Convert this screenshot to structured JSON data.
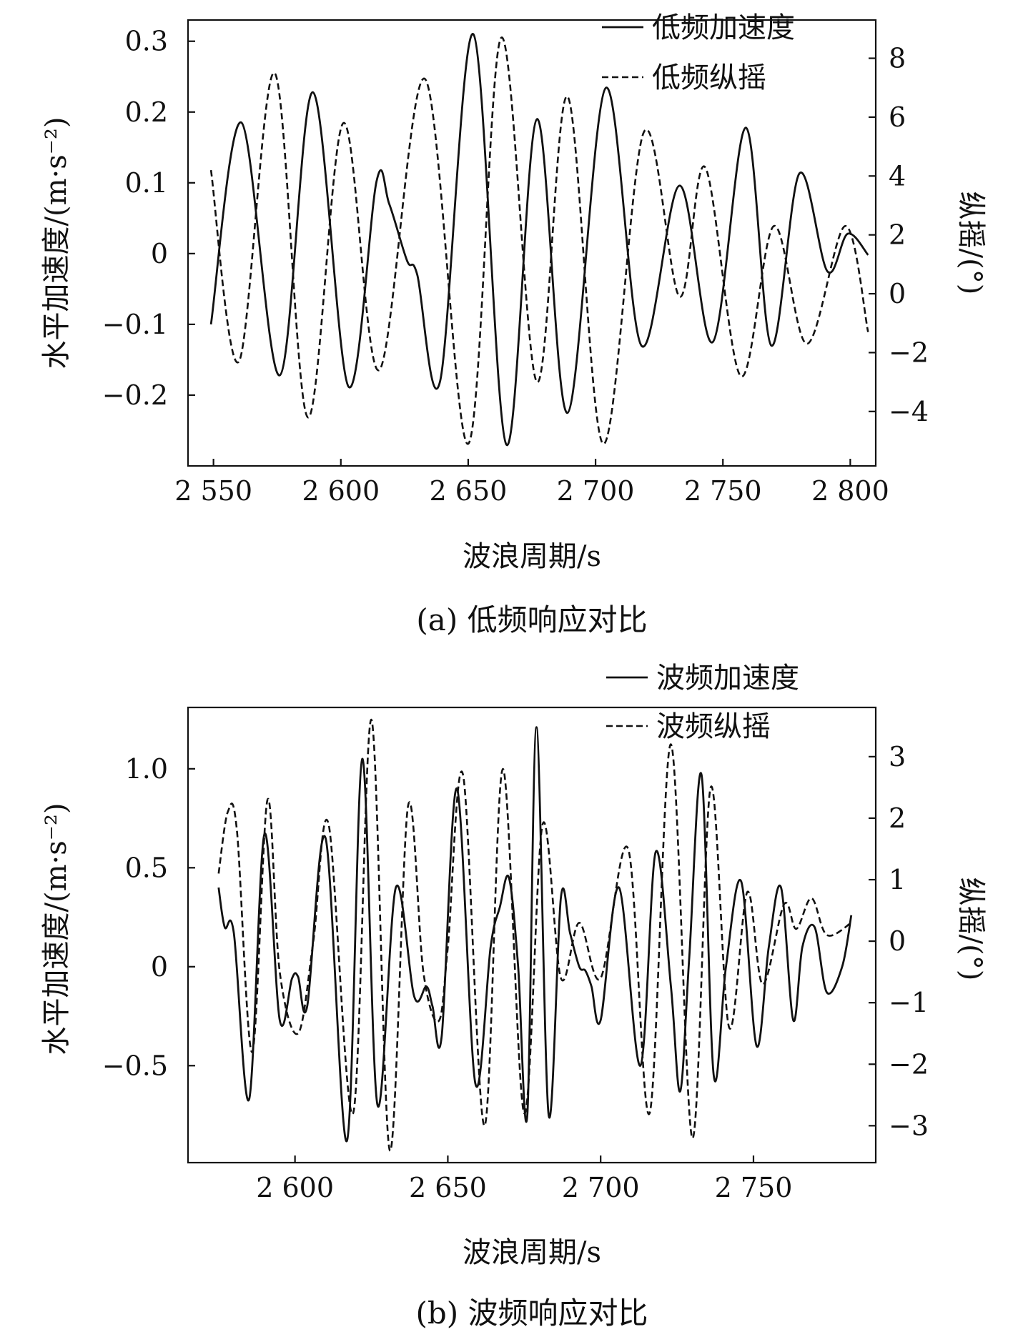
{
  "chart_data": [
    {
      "type": "line",
      "caption": "(a) 低频响应对比",
      "xlabel": "波浪周期/s",
      "ylabel": "水平加速度/(m·s⁻²)",
      "y2label": "纵摇/(°)",
      "xlim": [
        2540,
        2810
      ],
      "ylim": [
        -0.3,
        0.33
      ],
      "y2lim": [
        -5.85,
        9.3
      ],
      "xticks": [
        2550,
        2600,
        2650,
        2700,
        2750,
        2800
      ],
      "xtick_labels": [
        "2 550",
        "2 600",
        "2 650",
        "2 700",
        "2 750",
        "2 800"
      ],
      "yticks": [
        -0.2,
        -0.1,
        0,
        0.1,
        0.2,
        0.3
      ],
      "ytick_labels": [
        "−0.2",
        "−0.1",
        "0",
        "0.1",
        "0.2",
        "0.3"
      ],
      "y2ticks": [
        -4,
        -2,
        0,
        2,
        4,
        6,
        8
      ],
      "y2tick_labels": [
        "−4",
        "−2",
        "0",
        "2",
        "4",
        "6",
        "8"
      ],
      "legend_position": "top-right",
      "series": [
        {
          "name": "低频加速度",
          "style": "solid",
          "axis": "left",
          "x": [
            2549,
            2561,
            2576,
            2589,
            2603,
            2614,
            2619,
            2626,
            2630,
            2639,
            2652,
            2665,
            2677,
            2689,
            2704,
            2718,
            2733,
            2746,
            2759,
            2769,
            2780,
            2791,
            2799,
            2807
          ],
          "y": [
            -0.1,
            0.185,
            -0.172,
            0.228,
            -0.188,
            0.102,
            0.07,
            -0.01,
            -0.03,
            -0.18,
            0.31,
            -0.27,
            0.19,
            -0.225,
            0.234,
            -0.13,
            0.096,
            -0.125,
            0.178,
            -0.13,
            0.113,
            -0.025,
            0.028,
            -0.002
          ]
        },
        {
          "name": "低频纵摇",
          "style": "dashed",
          "axis": "right",
          "x": [
            2549,
            2560,
            2574,
            2587,
            2601,
            2615,
            2633,
            2650,
            2663,
            2677,
            2689,
            2703,
            2719,
            2733,
            2743,
            2757,
            2770,
            2783,
            2798,
            2807
          ],
          "y": [
            4.2,
            -2.3,
            7.5,
            -4.2,
            5.8,
            -2.6,
            7.3,
            -5.1,
            8.7,
            -3.0,
            6.7,
            -5.1,
            5.5,
            -0.1,
            4.3,
            -2.8,
            2.3,
            -1.7,
            2.3,
            -1.3
          ]
        }
      ]
    },
    {
      "type": "line",
      "caption": "(b) 波频响应对比",
      "xlabel": "波浪周期/s",
      "ylabel": "水平加速度/(m·s⁻²)",
      "y2label": "纵摇/(°)",
      "xlim": [
        2565,
        2790
      ],
      "ylim": [
        -0.99,
        1.31
      ],
      "y2lim": [
        -3.6,
        3.8
      ],
      "xticks": [
        2600,
        2650,
        2700,
        2750
      ],
      "xtick_labels": [
        "2 600",
        "2 650",
        "2 700",
        "2 750"
      ],
      "yticks": [
        -0.5,
        0,
        0.5,
        1.0
      ],
      "ytick_labels": [
        "−0.5",
        "0",
        "0.5",
        "1.0"
      ],
      "y2ticks": [
        -3,
        -2,
        -1,
        0,
        1,
        2,
        3
      ],
      "y2tick_labels": [
        "−3",
        "−2",
        "−1",
        "0",
        "1",
        "2",
        "3"
      ],
      "legend_position": "top-right",
      "series": [
        {
          "name": "波频加速度",
          "style": "solid",
          "axis": "left",
          "x": [
            2575,
            2577,
            2580,
            2585,
            2590,
            2595,
            2599,
            2601,
            2604,
            2610,
            2617,
            2622,
            2627,
            2633,
            2639,
            2643,
            2645,
            2648,
            2653,
            2659,
            2664,
            2667,
            2670,
            2673,
            2676,
            2679,
            2683,
            2687,
            2690,
            2693,
            2695,
            2697,
            2700,
            2706,
            2713,
            2718,
            2723,
            2726,
            2729,
            2733,
            2737,
            2741,
            2746,
            2751,
            2755,
            2759,
            2763,
            2766,
            2770,
            2774,
            2779,
            2782
          ],
          "y": [
            0.4,
            0.2,
            0.17,
            -0.67,
            0.67,
            -0.27,
            -0.06,
            -0.05,
            -0.2,
            0.65,
            -0.88,
            1.05,
            -0.7,
            0.4,
            -0.15,
            -0.1,
            -0.2,
            -0.35,
            0.9,
            -0.59,
            0.1,
            0.3,
            0.45,
            0.0,
            -0.75,
            1.21,
            -0.75,
            0.35,
            0.17,
            0.0,
            -0.02,
            -0.1,
            -0.27,
            0.4,
            -0.5,
            0.58,
            -0.1,
            -0.63,
            0.05,
            0.97,
            -0.55,
            0.0,
            0.43,
            -0.4,
            0.1,
            0.4,
            -0.27,
            0.1,
            0.2,
            -0.13,
            0.0,
            0.26
          ]
        },
        {
          "name": "波频纵摇",
          "style": "dashed",
          "axis": "right",
          "x": [
            2575,
            2578,
            2581,
            2586,
            2591,
            2595,
            2601,
            2606,
            2611,
            2619,
            2625,
            2631,
            2637,
            2642,
            2647,
            2650,
            2655,
            2662,
            2668,
            2675,
            2681,
            2687,
            2693,
            2700,
            2709,
            2716,
            2723,
            2730,
            2736,
            2742,
            2748,
            2753,
            2760,
            2764,
            2769,
            2774,
            2782
          ],
          "y": [
            1.1,
            2.1,
            1.8,
            -1.8,
            2.3,
            -0.5,
            -1.5,
            0.0,
            1.9,
            -2.8,
            3.6,
            -3.4,
            2.2,
            -0.5,
            -1.3,
            -0.1,
            2.7,
            -3.0,
            2.8,
            -2.8,
            1.9,
            -0.6,
            0.3,
            -0.6,
            1.5,
            -2.8,
            3.2,
            -3.2,
            2.5,
            -1.4,
            0.8,
            -0.7,
            0.6,
            0.2,
            0.7,
            0.1,
            0.3
          ]
        }
      ]
    }
  ]
}
